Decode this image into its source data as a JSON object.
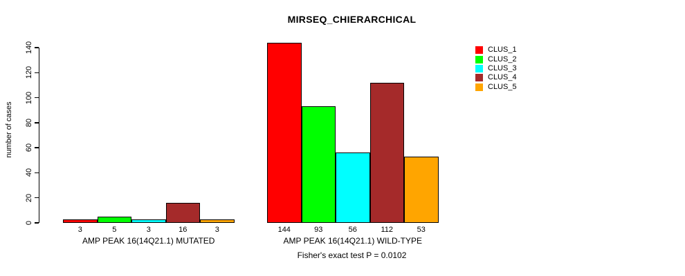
{
  "chart_data": {
    "type": "bar",
    "title": "MIRSEQ_CHIERARCHICAL",
    "ylabel": "number of cases",
    "xlabel": "",
    "ylim": [
      0,
      140
    ],
    "yticks": [
      0,
      20,
      40,
      60,
      80,
      100,
      120,
      140
    ],
    "grid": false,
    "legend_position": "top-right",
    "series": [
      {
        "name": "CLUS_1",
        "color": "#FF0000"
      },
      {
        "name": "CLUS_2",
        "color": "#00FF00"
      },
      {
        "name": "CLUS_3",
        "color": "#00FFFF"
      },
      {
        "name": "CLUS_4",
        "color": "#A52A2A"
      },
      {
        "name": "CLUS_5",
        "color": "#FFA500"
      }
    ],
    "groups": [
      {
        "label": "AMP PEAK 16(14Q21.1) MUTATED",
        "values": [
          3,
          5,
          3,
          16,
          3
        ]
      },
      {
        "label": "AMP PEAK 16(14Q21.1) WILD-TYPE",
        "values": [
          144,
          93,
          56,
          112,
          53
        ]
      }
    ],
    "footnote": "Fisher's exact test P = 0.0102"
  }
}
